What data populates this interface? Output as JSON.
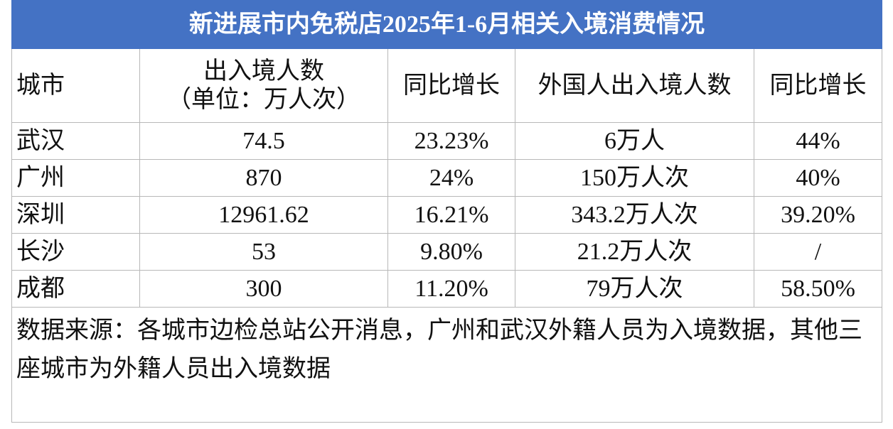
{
  "table": {
    "title": "新进展市内免税店2025年1-6月相关入境消费情况",
    "header": [
      [
        "城市"
      ],
      [
        "出入境人数",
        "（单位：万人次）"
      ],
      [
        "同比增长"
      ],
      [
        "外国人出入境人数"
      ],
      [
        "同比增长"
      ]
    ],
    "rows": [
      [
        "武汉",
        "74.5",
        "23.23%",
        "6万人",
        "44%"
      ],
      [
        "广州",
        "870",
        "24%",
        "150万人次",
        "40%"
      ],
      [
        "深圳",
        "12961.62",
        "16.21%",
        "343.2万人次",
        "39.20%"
      ],
      [
        "长沙",
        "53",
        "9.80%",
        "21.2万人次",
        "/"
      ],
      [
        "成都",
        "300",
        "11.20%",
        "79万人次",
        "58.50%"
      ]
    ],
    "footnote": "数据来源：各城市边检总站公开消息，广州和武汉外籍人员为入境数据，其他三座城市为外籍人员出入境数据"
  }
}
